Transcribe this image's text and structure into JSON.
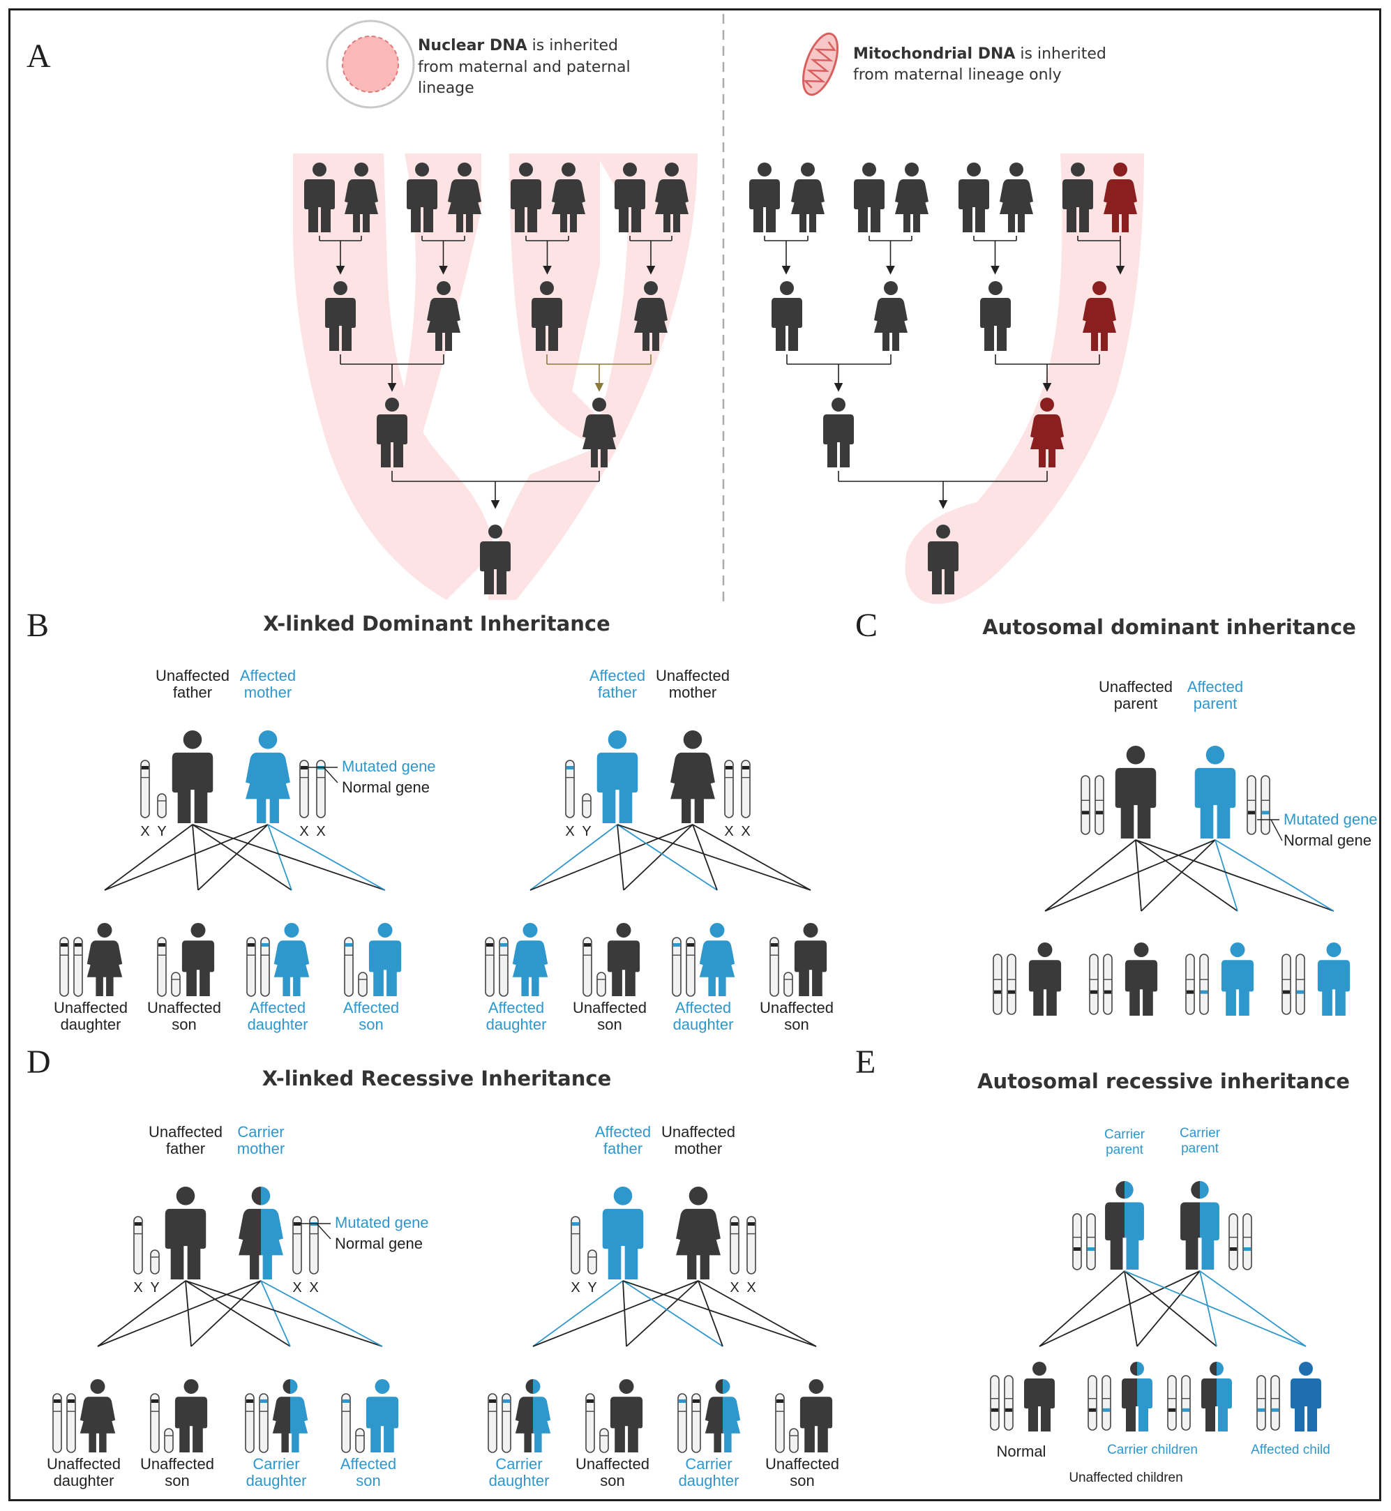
{
  "colors": {
    "dark": "#3a3a3a",
    "blue": "#2e97cc",
    "blue_dark": "#1f6fb0",
    "red": "#8a1f1f",
    "pink": "#fde3e3",
    "line": "#222222",
    "olive": "#8a7a3a"
  },
  "panel_a": {
    "label": "A",
    "nuclear": {
      "bold": "Nuclear DNA",
      "line1_rest": " is inherited",
      "line2": "from maternal and paternal",
      "line3": "lineage",
      "icon": "nucleus-cell-icon"
    },
    "mito": {
      "bold": "Mitochondrial DNA",
      "line1_rest": " is inherited",
      "line2": "from maternal lineage only",
      "icon": "mitochondrion-icon"
    }
  },
  "panel_b": {
    "label": "B",
    "title": "X-linked Dominant Inheritance",
    "left": {
      "parents": [
        {
          "l1": "Unaffected",
          "l2": "father"
        },
        {
          "l1": "Affected",
          "l2": "mother"
        }
      ],
      "legend": {
        "mutated": "Mutated gene",
        "normal": "Normal gene"
      },
      "chrom_labels": [
        "X",
        "Y",
        "X",
        "X"
      ],
      "children": [
        {
          "l1": "Unaffected",
          "l2": "daughter"
        },
        {
          "l1": "Unaffected",
          "l2": "son"
        },
        {
          "l1": "Affected",
          "l2": "daughter"
        },
        {
          "l1": "Affected",
          "l2": "son"
        }
      ]
    },
    "right": {
      "parents": [
        {
          "l1": "Affected",
          "l2": "father"
        },
        {
          "l1": "Unaffected",
          "l2": "mother"
        }
      ],
      "chrom_labels": [
        "X",
        "Y",
        "X",
        "X"
      ],
      "children": [
        {
          "l1": "Affected",
          "l2": "daughter"
        },
        {
          "l1": "Unaffected",
          "l2": "son"
        },
        {
          "l1": "Affected",
          "l2": "daughter"
        },
        {
          "l1": "Unaffected",
          "l2": "son"
        }
      ]
    }
  },
  "panel_c": {
    "label": "C",
    "title": "Autosomal dominant inheritance",
    "parents": [
      {
        "l1": "Unaffected",
        "l2": "parent"
      },
      {
        "l1": "Affected",
        "l2": "parent"
      }
    ],
    "legend": {
      "mutated": "Mutated gene",
      "normal": "Normal gene"
    }
  },
  "panel_d": {
    "label": "D",
    "title": "X-linked Recessive Inheritance",
    "left": {
      "parents": [
        {
          "l1": "Unaffected",
          "l2": "father"
        },
        {
          "l1": "Carrier",
          "l2": "mother"
        }
      ],
      "legend": {
        "mutated": "Mutated gene",
        "normal": "Normal gene"
      },
      "chrom_labels": [
        "X",
        "Y",
        "X",
        "X"
      ],
      "children": [
        {
          "l1": "Unaffected",
          "l2": "daughter"
        },
        {
          "l1": "Unaffected",
          "l2": "son"
        },
        {
          "l1": "Carrier",
          "l2": "daughter"
        },
        {
          "l1": "Affected",
          "l2": "son"
        }
      ]
    },
    "right": {
      "parents": [
        {
          "l1": "Affected",
          "l2": "father"
        },
        {
          "l1": "Unaffected",
          "l2": "mother"
        }
      ],
      "chrom_labels": [
        "X",
        "Y",
        "X",
        "X"
      ],
      "children": [
        {
          "l1": "Carrier",
          "l2": "daughter"
        },
        {
          "l1": "Unaffected",
          "l2": "son"
        },
        {
          "l1": "Carrier",
          "l2": "daughter"
        },
        {
          "l1": "Unaffected",
          "l2": "son"
        }
      ]
    }
  },
  "panel_e": {
    "label": "E",
    "title": "Autosomal recessive inheritance",
    "parents": [
      {
        "l1": "Carrier",
        "l2": "parent"
      },
      {
        "l1": "Carrier",
        "l2": "parent"
      }
    ],
    "children_labels": {
      "normal": "Normal",
      "carrier": "Carrier children",
      "affected": "Affected child",
      "bottom": "Unaffected children"
    }
  }
}
